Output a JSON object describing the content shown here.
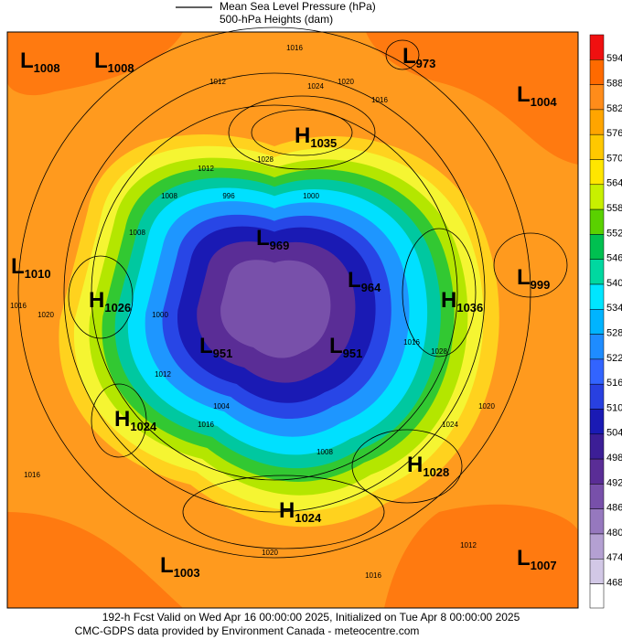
{
  "header": {
    "legend_line": "Mean Sea Level Pressure (hPa)",
    "subtitle": "500-hPa Heights (dam)"
  },
  "systems": [
    {
      "letter": "L",
      "value": 1008
    },
    {
      "letter": "L",
      "value": 1008
    },
    {
      "letter": "L",
      "value": 973
    },
    {
      "letter": "L",
      "value": 1004
    },
    {
      "letter": "H",
      "value": 1035
    },
    {
      "letter": "L",
      "value": 1010
    },
    {
      "letter": "H",
      "value": 1026
    },
    {
      "letter": "L",
      "value": 969
    },
    {
      "letter": "L",
      "value": 964
    },
    {
      "letter": "H",
      "value": 1036
    },
    {
      "letter": "L",
      "value": 999
    },
    {
      "letter": "L",
      "value": 951
    },
    {
      "letter": "L",
      "value": 951
    },
    {
      "letter": "H",
      "value": 1024
    },
    {
      "letter": "H",
      "value": 1028
    },
    {
      "letter": "H",
      "value": 1024
    },
    {
      "letter": "L",
      "value": 1003
    },
    {
      "letter": "L",
      "value": 1007
    }
  ],
  "contour_labels": [
    1016,
    1012,
    1024,
    1020,
    1016,
    1028,
    1012,
    996,
    1000,
    1008,
    1016,
    1020,
    1008,
    1000,
    1012,
    1004,
    1016,
    1016,
    1024,
    1020,
    1020,
    1016,
    1012,
    1016,
    1008,
    1028
  ],
  "colorbar": {
    "labels": [
      594,
      588,
      582,
      576,
      570,
      564,
      558,
      552,
      546,
      540,
      534,
      528,
      522,
      516,
      510,
      504,
      498,
      492,
      486,
      480,
      474,
      468
    ]
  },
  "footer": {
    "line1": "192-h Fcst Valid on Wed Apr 16 00:00:00 2025, Initialized on Tue Apr  8 00:00:00 2025",
    "line2": "CMC-GDPS data provided by Environment Canada - meteocentre.com"
  }
}
